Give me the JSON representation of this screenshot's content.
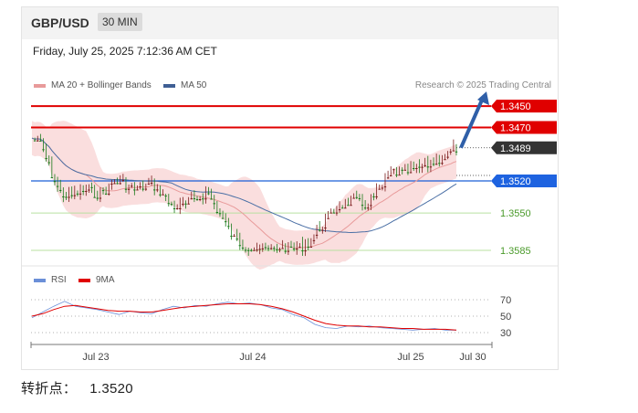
{
  "header": {
    "pair": "GBP/USD",
    "timeframe": "30 MIN"
  },
  "datetime": "Friday, July 25, 2025 7:12:36 AM CET",
  "legend": {
    "ma20": "MA 20 + Bollinger Bands",
    "ma50": "MA 50",
    "credit": "Research © 2025 Trading Central"
  },
  "rsi_legend": {
    "rsi": "RSI",
    "ma9": "9MA"
  },
  "pivot": {
    "label": "转折点：",
    "value": "1.3520"
  },
  "colors": {
    "candle_up": "#1a7a1a",
    "candle_down": "#7a1a1a",
    "band": "#f7c8c8",
    "ma20": "#e89a9a",
    "ma50": "#4a6fa5",
    "support": "#e00000",
    "pivot": "#1a5fd8",
    "resistance_line": "#b8e0a0",
    "resistance_text": "#4a9a2a",
    "rsi": "#6b8fd8",
    "rsi_ma": "#e00000"
  },
  "chart_data": [
    {
      "type": "candlestick",
      "title": "GBP/USD 30 MIN",
      "x_tick_labels": [
        "Jul 23",
        "Jul 24",
        "Jul 25",
        "Jul 30"
      ],
      "levels": [
        {
          "value": 1.3585,
          "label": "1.3585",
          "kind": "resistance"
        },
        {
          "value": 1.355,
          "label": "1.3550",
          "kind": "resistance"
        },
        {
          "value": 1.352,
          "label": "1.3520",
          "kind": "pivot"
        },
        {
          "value": 1.3489,
          "label": "1.3489",
          "kind": "last"
        },
        {
          "value": 1.347,
          "label": "1.3470",
          "kind": "support"
        },
        {
          "value": 1.345,
          "label": "1.3450",
          "kind": "support"
        }
      ],
      "ylim": [
        1.344,
        1.36
      ],
      "close_path": [
        1.348,
        1.3485,
        1.351,
        1.353,
        1.3535,
        1.353,
        1.3528,
        1.3532,
        1.3528,
        1.352,
        1.3522,
        1.3528,
        1.3525,
        1.3522,
        1.353,
        1.3542,
        1.3545,
        1.354,
        1.3535,
        1.353,
        1.3545,
        1.356,
        1.3575,
        1.358,
        1.3582,
        1.3583,
        1.3585,
        1.358,
        1.3583,
        1.3582,
        1.3578,
        1.3565,
        1.3555,
        1.3545,
        1.354,
        1.3538,
        1.3543,
        1.3535,
        1.3525,
        1.351,
        1.3513,
        1.351,
        1.3507,
        1.3504,
        1.35,
        1.3495,
        1.3489
      ],
      "forecast": {
        "from": 1.3489,
        "to": 1.345,
        "direction": "down"
      },
      "series": [
        {
          "name": "MA 20 + Bollinger Bands"
        },
        {
          "name": "MA 50"
        }
      ]
    },
    {
      "type": "line",
      "title": "RSI",
      "y_tick_labels": [
        "70",
        "50",
        "30"
      ],
      "ylim": [
        20,
        80
      ],
      "series": [
        {
          "name": "RSI",
          "values": [
            48,
            55,
            62,
            68,
            62,
            60,
            58,
            55,
            52,
            56,
            54,
            53,
            58,
            62,
            60,
            63,
            62,
            65,
            67,
            65,
            66,
            64,
            60,
            58,
            52,
            48,
            40,
            36,
            35,
            38,
            37,
            38,
            36,
            35,
            34,
            33,
            34,
            35,
            33,
            33
          ]
        },
        {
          "name": "9MA",
          "values": [
            50,
            53,
            58,
            62,
            63,
            61,
            59,
            57,
            56,
            56,
            55,
            55,
            57,
            59,
            61,
            62,
            63,
            64,
            65,
            65,
            65,
            64,
            62,
            59,
            55,
            50,
            45,
            41,
            39,
            38,
            38,
            37,
            37,
            36,
            35,
            35,
            34,
            34,
            34,
            33
          ]
        }
      ]
    }
  ]
}
